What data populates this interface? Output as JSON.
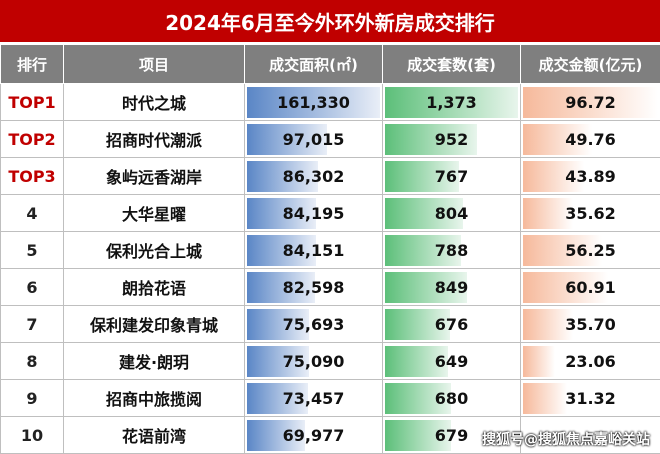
{
  "title": "2024年6月至今外环外新房成交排行",
  "headers": [
    "排行",
    "项目",
    "成交面积(㎡)",
    "成交套数(套)",
    "成交金额(亿元)"
  ],
  "colors": {
    "title_bg": "#c00000",
    "header_bg": "#7f7f7f",
    "top_rank": "#c00000",
    "area_bar": "#5a86c6",
    "units_bar": "#5cbf79",
    "amount_bar": "#f6b99b"
  },
  "rows": [
    {
      "rank": "TOP1",
      "project": "时代之城",
      "area": "161,330",
      "units": "1,373",
      "amount": "96.72"
    },
    {
      "rank": "TOP2",
      "project": "招商时代潮派",
      "area": "97,015",
      "units": "952",
      "amount": "49.76"
    },
    {
      "rank": "TOP3",
      "project": "象屿远香湖岸",
      "area": "86,302",
      "units": "767",
      "amount": "43.89"
    },
    {
      "rank": "4",
      "project": "大华星曜",
      "area": "84,195",
      "units": "804",
      "amount": "35.62"
    },
    {
      "rank": "5",
      "project": "保利光合上城",
      "area": "84,151",
      "units": "788",
      "amount": "56.25"
    },
    {
      "rank": "6",
      "project": "朗拾花语",
      "area": "82,598",
      "units": "849",
      "amount": "60.91"
    },
    {
      "rank": "7",
      "project": "保利建发印象青城",
      "area": "75,693",
      "units": "676",
      "amount": "35.70"
    },
    {
      "rank": "8",
      "project": "建发·朗玥",
      "area": "75,090",
      "units": "649",
      "amount": "23.06"
    },
    {
      "rank": "9",
      "project": "招商中旅揽阅",
      "area": "73,457",
      "units": "680",
      "amount": "31.32"
    },
    {
      "rank": "10",
      "project": "花语前湾",
      "area": "69,977",
      "units": "679",
      "amount": ""
    }
  ],
  "watermark": "搜狐号@搜狐焦点嘉峪关站"
}
